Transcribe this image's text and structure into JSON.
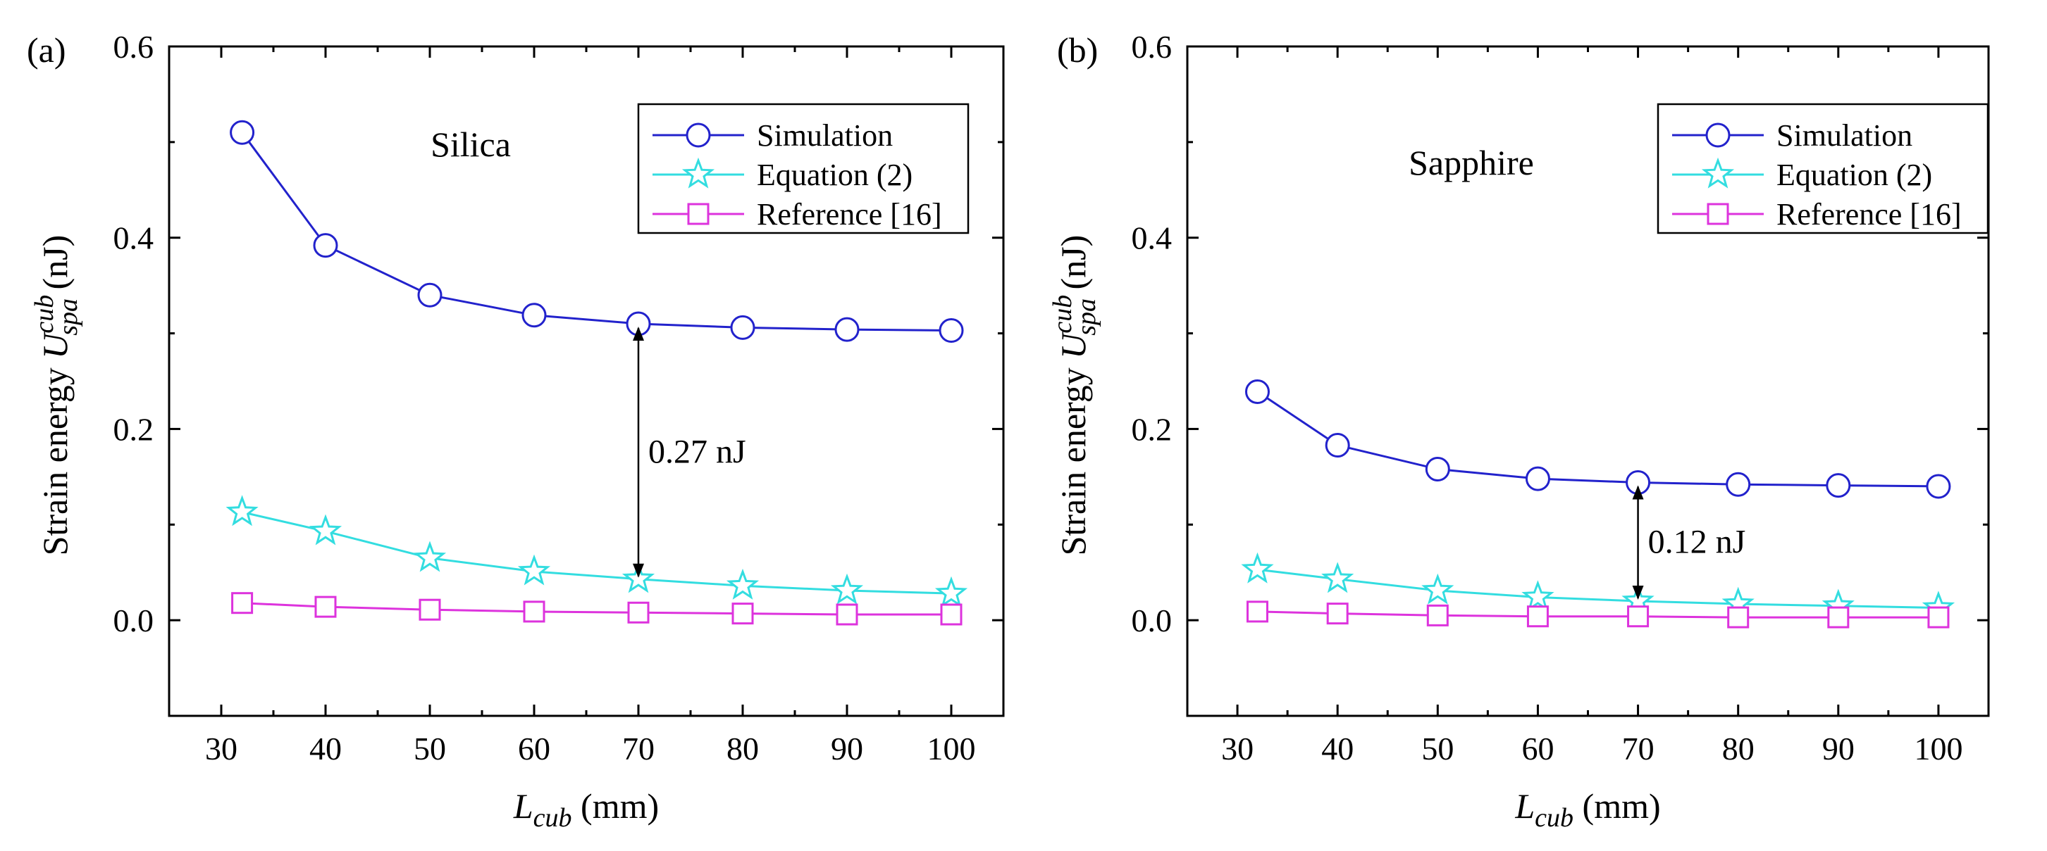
{
  "chart_data": [
    {
      "type": "line",
      "panel_label": "(a)",
      "title": "Silica",
      "xlabel": {
        "main": "L",
        "sub": "cub",
        "unit": " (mm)"
      },
      "ylabel": {
        "prefix": "Strain energy ",
        "main": "U",
        "sup": "cub",
        "sub": "spa",
        "unit": " (nJ)"
      },
      "xlim": [
        25,
        105
      ],
      "ylim": [
        -0.1,
        0.6
      ],
      "xticks": [
        30,
        40,
        50,
        60,
        70,
        80,
        90,
        100
      ],
      "yticks": [
        0.0,
        0.2,
        0.4,
        0.6
      ],
      "ytick_labels": [
        "0.0",
        "0.2",
        "0.4",
        "0.6"
      ],
      "legend_position": "top-right",
      "x": [
        32,
        40,
        50,
        60,
        70,
        80,
        90,
        100
      ],
      "series": [
        {
          "name": "Simulation",
          "marker": "circle",
          "color": "#2222cc",
          "values": [
            0.51,
            0.392,
            0.34,
            0.319,
            0.31,
            0.306,
            0.304,
            0.303
          ]
        },
        {
          "name": "Equation  (2)",
          "marker": "star",
          "color": "#33dde0",
          "values": [
            0.113,
            0.093,
            0.065,
            0.051,
            0.043,
            0.036,
            0.031,
            0.028
          ]
        },
        {
          "name": "Reference [16]",
          "marker": "square",
          "color": "#dd33dd",
          "values": [
            0.018,
            0.014,
            0.011,
            0.009,
            0.008,
            0.007,
            0.006,
            0.006
          ]
        }
      ],
      "annotation": {
        "text": "0.27 nJ",
        "x": 70,
        "y_from": 0.043,
        "y_to": 0.31
      }
    },
    {
      "type": "line",
      "panel_label": "(b)",
      "title": "Sapphire",
      "xlabel": {
        "main": "L",
        "sub": "cub",
        "unit": " (mm)"
      },
      "ylabel": {
        "prefix": "Strain energy ",
        "main": "U",
        "sup": "cub",
        "sub": "spa",
        "unit": " (nJ)"
      },
      "xlim": [
        25,
        105
      ],
      "ylim": [
        -0.1,
        0.6
      ],
      "xticks": [
        30,
        40,
        50,
        60,
        70,
        80,
        90,
        100
      ],
      "yticks": [
        0.0,
        0.2,
        0.4,
        0.6
      ],
      "ytick_labels": [
        "0.0",
        "0.2",
        "0.4",
        "0.6"
      ],
      "legend_position": "top-right",
      "x": [
        32,
        40,
        50,
        60,
        70,
        80,
        90,
        100
      ],
      "series": [
        {
          "name": "Simulation",
          "marker": "circle",
          "color": "#2222cc",
          "values": [
            0.239,
            0.183,
            0.158,
            0.148,
            0.144,
            0.142,
            0.141,
            0.14
          ]
        },
        {
          "name": "Equation  (2)",
          "marker": "star",
          "color": "#33dde0",
          "values": [
            0.053,
            0.043,
            0.031,
            0.024,
            0.02,
            0.017,
            0.015,
            0.013
          ]
        },
        {
          "name": "Reference [16]",
          "marker": "square",
          "color": "#dd33dd",
          "values": [
            0.009,
            0.007,
            0.005,
            0.004,
            0.004,
            0.003,
            0.003,
            0.003
          ]
        }
      ],
      "annotation": {
        "text": "0.12 nJ",
        "x": 70,
        "y_from": 0.02,
        "y_to": 0.144
      }
    }
  ]
}
